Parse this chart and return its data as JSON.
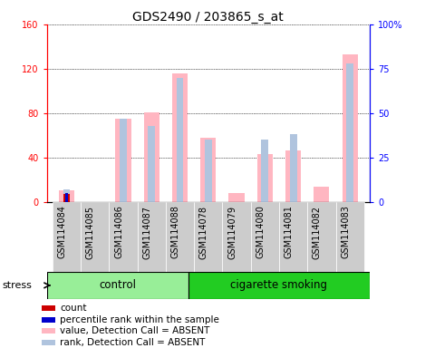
{
  "title": "GDS2490 / 203865_s_at",
  "samples": [
    "GSM114084",
    "GSM114085",
    "GSM114086",
    "GSM114087",
    "GSM114088",
    "GSM114078",
    "GSM114079",
    "GSM114080",
    "GSM114081",
    "GSM114082",
    "GSM114083"
  ],
  "value_absent": [
    10.0,
    0.0,
    75.0,
    81.0,
    116.0,
    58.0,
    8.0,
    43.0,
    46.0,
    14.0,
    133.0
  ],
  "rank_absent": [
    11.2,
    0.0,
    75.2,
    68.8,
    112.0,
    56.0,
    0.0,
    56.0,
    60.8,
    0.0,
    124.8
  ],
  "count_present": [
    7.0,
    0.0,
    0.0,
    0.0,
    0.0,
    0.0,
    0.0,
    0.0,
    0.0,
    0.0,
    0.0
  ],
  "rank_present": [
    8.0,
    0.0,
    0.0,
    0.0,
    0.0,
    0.0,
    0.0,
    0.0,
    0.0,
    0.0,
    0.0
  ],
  "ylim_left": [
    0,
    160
  ],
  "ylim_right": [
    0,
    100
  ],
  "yticks_left": [
    0,
    40,
    80,
    120,
    160
  ],
  "ytick_labels_left": [
    "0",
    "40",
    "80",
    "120",
    "160"
  ],
  "yticks_right": [
    0,
    25,
    50,
    75,
    100
  ],
  "ytick_labels_right": [
    "0",
    "25",
    "50",
    "75",
    "100%"
  ],
  "color_value_absent": "#FFB6C1",
  "color_rank_absent": "#B0C4DE",
  "color_count_present": "#CC0000",
  "color_rank_present": "#0000CC",
  "bar_width": 0.55,
  "rank_bar_width": 0.25,
  "group_control_color": "#98EE98",
  "group_smoking_color": "#22CC22",
  "tick_bg_color": "#CCCCCC",
  "stress_label": "stress",
  "group_labels": [
    "control",
    "cigarette smoking"
  ],
  "n_control": 5,
  "n_smoking": 6,
  "legend_items": [
    {
      "label": "count",
      "color": "#CC0000"
    },
    {
      "label": "percentile rank within the sample",
      "color": "#0000CC"
    },
    {
      "label": "value, Detection Call = ABSENT",
      "color": "#FFB6C1"
    },
    {
      "label": "rank, Detection Call = ABSENT",
      "color": "#B0C4DE"
    }
  ],
  "font_size_title": 10,
  "font_size_tick": 7,
  "font_size_legend": 7.5,
  "font_size_group": 8.5
}
